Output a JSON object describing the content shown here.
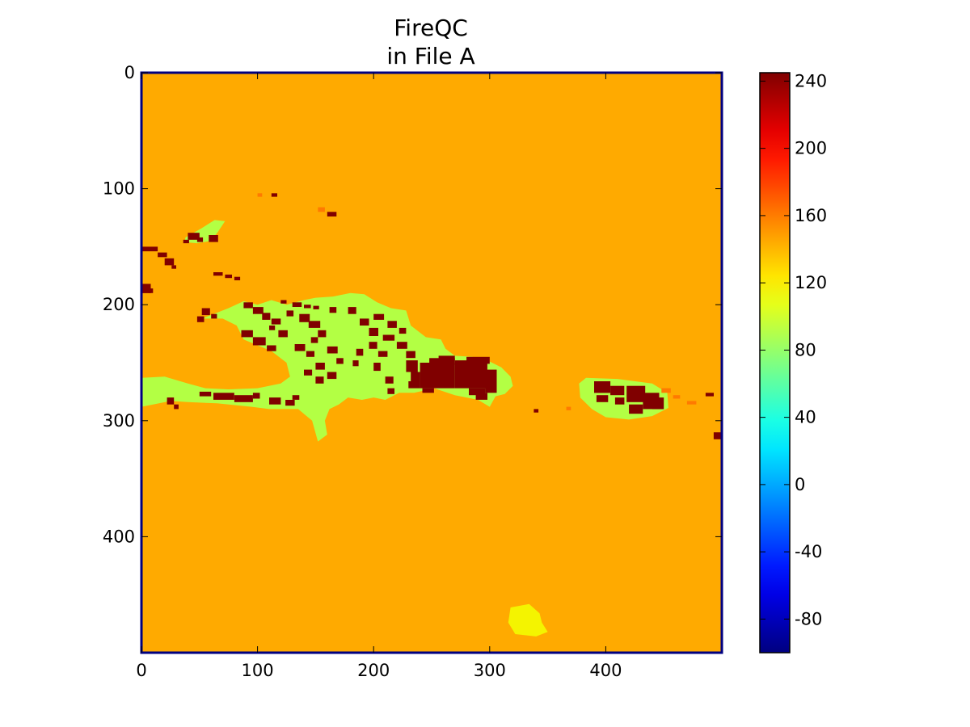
{
  "chart_data": {
    "type": "heatmap",
    "title": "FireQC",
    "subtitle": "in File A",
    "xlabel": "",
    "ylabel": "",
    "xlim": [
      0,
      500
    ],
    "ylim": [
      500,
      0
    ],
    "grid": false,
    "x_ticks": [
      "0",
      "100",
      "200",
      "300",
      "400"
    ],
    "y_ticks": [
      "0",
      "100",
      "200",
      "300",
      "400"
    ],
    "colormap": "jet",
    "colorbar": {
      "range": [
        -100,
        245
      ],
      "ticks": [
        "-80",
        "-40",
        "0",
        "40",
        "80",
        "120",
        "160",
        "200",
        "240"
      ],
      "tick_values": [
        -80,
        -40,
        0,
        40,
        80,
        120,
        160,
        200,
        240
      ]
    },
    "categories": [
      {
        "value": 165,
        "color": "#ffaa00"
      },
      {
        "value": 100,
        "color": "#b3ff44"
      },
      {
        "value": 245,
        "color": "#800000"
      },
      {
        "value": 135,
        "color": "#f4f400"
      },
      {
        "value": 175,
        "color": "#ff7a00"
      }
    ],
    "regions": [
      {
        "value": 100,
        "shape": "hispaniola",
        "points": [
          [
            75,
            203
          ],
          [
            88,
            197
          ],
          [
            100,
            200
          ],
          [
            112,
            196
          ],
          [
            125,
            200
          ],
          [
            140,
            196
          ],
          [
            150,
            194
          ],
          [
            165,
            193
          ],
          [
            180,
            190
          ],
          [
            192,
            191
          ],
          [
            203,
            198
          ],
          [
            215,
            203
          ],
          [
            228,
            205
          ],
          [
            232,
            218
          ],
          [
            245,
            228
          ],
          [
            258,
            230
          ],
          [
            262,
            238
          ],
          [
            270,
            244
          ],
          [
            285,
            245
          ],
          [
            298,
            248
          ],
          [
            310,
            254
          ],
          [
            318,
            262
          ],
          [
            320,
            270
          ],
          [
            313,
            277
          ],
          [
            305,
            279
          ],
          [
            300,
            288
          ],
          [
            290,
            282
          ],
          [
            270,
            278
          ],
          [
            252,
            272
          ],
          [
            235,
            276
          ],
          [
            222,
            276
          ],
          [
            210,
            282
          ],
          [
            200,
            280
          ],
          [
            190,
            282
          ],
          [
            178,
            280
          ],
          [
            170,
            286
          ],
          [
            162,
            290
          ],
          [
            158,
            300
          ],
          [
            160,
            312
          ],
          [
            152,
            318
          ],
          [
            147,
            300
          ],
          [
            135,
            290
          ],
          [
            110,
            290
          ],
          [
            95,
            288
          ],
          [
            65,
            285
          ],
          [
            40,
            284
          ],
          [
            25,
            283
          ],
          [
            10,
            286
          ],
          [
            0,
            288
          ],
          [
            0,
            263
          ],
          [
            20,
            262
          ],
          [
            40,
            268
          ],
          [
            55,
            272
          ],
          [
            75,
            273
          ],
          [
            100,
            272
          ],
          [
            120,
            268
          ],
          [
            128,
            262
          ],
          [
            125,
            250
          ],
          [
            112,
            240
          ],
          [
            88,
            230
          ],
          [
            82,
            218
          ],
          [
            70,
            212
          ],
          [
            52,
            212
          ]
        ]
      },
      {
        "value": 100,
        "shape": "puerto-rico",
        "points": [
          [
            377,
            268
          ],
          [
            383,
            263
          ],
          [
            410,
            264
          ],
          [
            440,
            268
          ],
          [
            453,
            276
          ],
          [
            454,
            289
          ],
          [
            440,
            296
          ],
          [
            420,
            299
          ],
          [
            400,
            297
          ],
          [
            388,
            290
          ],
          [
            378,
            280
          ]
        ]
      },
      {
        "value": 100,
        "shape": "cuba-blob",
        "points": [
          [
            38,
            142
          ],
          [
            52,
            134
          ],
          [
            63,
            127
          ],
          [
            72,
            128
          ],
          [
            66,
            137
          ],
          [
            60,
            145
          ],
          [
            48,
            147
          ],
          [
            37,
            146
          ]
        ]
      },
      {
        "value": 135,
        "shape": "island-south",
        "points": [
          [
            318,
            461
          ],
          [
            334,
            458
          ],
          [
            343,
            466
          ],
          [
            345,
            474
          ],
          [
            350,
            482
          ],
          [
            340,
            486
          ],
          [
            322,
            484
          ],
          [
            316,
            474
          ]
        ]
      }
    ],
    "blocks": [
      [
        52,
        203,
        7,
        6,
        245
      ],
      [
        48,
        210,
        6,
        5,
        245
      ],
      [
        60,
        208,
        5,
        4,
        245
      ],
      [
        88,
        198,
        8,
        5,
        245
      ],
      [
        96,
        202,
        9,
        6,
        245
      ],
      [
        104,
        207,
        7,
        6,
        245
      ],
      [
        112,
        212,
        8,
        5,
        245
      ],
      [
        110,
        218,
        5,
        4,
        245
      ],
      [
        86,
        222,
        10,
        6,
        245
      ],
      [
        96,
        228,
        11,
        7,
        245
      ],
      [
        108,
        235,
        8,
        5,
        245
      ],
      [
        118,
        222,
        8,
        6,
        245
      ],
      [
        125,
        205,
        6,
        5,
        245
      ],
      [
        136,
        208,
        9,
        7,
        245
      ],
      [
        144,
        214,
        10,
        6,
        245
      ],
      [
        152,
        222,
        7,
        6,
        245
      ],
      [
        146,
        228,
        6,
        5,
        245
      ],
      [
        132,
        234,
        9,
        6,
        245
      ],
      [
        142,
        240,
        7,
        5,
        245
      ],
      [
        150,
        250,
        8,
        6,
        245
      ],
      [
        160,
        236,
        9,
        6,
        245
      ],
      [
        168,
        246,
        6,
        5,
        245
      ],
      [
        160,
        258,
        8,
        6,
        245
      ],
      [
        150,
        262,
        7,
        6,
        245
      ],
      [
        140,
        256,
        7,
        5,
        245
      ],
      [
        162,
        202,
        6,
        5,
        245
      ],
      [
        178,
        202,
        7,
        6,
        245
      ],
      [
        188,
        212,
        8,
        6,
        245
      ],
      [
        196,
        220,
        8,
        7,
        245
      ],
      [
        200,
        208,
        9,
        5,
        245
      ],
      [
        212,
        214,
        8,
        6,
        245
      ],
      [
        222,
        220,
        6,
        5,
        245
      ],
      [
        196,
        232,
        7,
        6,
        245
      ],
      [
        204,
        240,
        8,
        5,
        245
      ],
      [
        200,
        250,
        6,
        7,
        245
      ],
      [
        210,
        262,
        7,
        6,
        245
      ],
      [
        208,
        226,
        10,
        5,
        245
      ],
      [
        220,
        232,
        9,
        6,
        245
      ],
      [
        228,
        240,
        8,
        6,
        245
      ],
      [
        185,
        238,
        6,
        6,
        245
      ],
      [
        182,
        248,
        5,
        5,
        245
      ],
      [
        212,
        272,
        6,
        5,
        245
      ],
      [
        228,
        248,
        10,
        10,
        245
      ],
      [
        232,
        258,
        8,
        8,
        245
      ],
      [
        240,
        250,
        30,
        22,
        245
      ],
      [
        248,
        246,
        22,
        6,
        245
      ],
      [
        256,
        244,
        14,
        4,
        245
      ],
      [
        270,
        248,
        28,
        24,
        245
      ],
      [
        280,
        245,
        20,
        6,
        245
      ],
      [
        282,
        272,
        14,
        6,
        245
      ],
      [
        288,
        276,
        10,
        6,
        245
      ],
      [
        296,
        256,
        10,
        20,
        245
      ],
      [
        242,
        272,
        10,
        4,
        245
      ],
      [
        230,
        266,
        10,
        6,
        245
      ],
      [
        62,
        276,
        18,
        6,
        245
      ],
      [
        80,
        278,
        16,
        6,
        245
      ],
      [
        96,
        276,
        6,
        5,
        245
      ],
      [
        50,
        275,
        10,
        4,
        245
      ],
      [
        110,
        280,
        10,
        6,
        245
      ],
      [
        124,
        282,
        8,
        5,
        245
      ],
      [
        130,
        278,
        6,
        4,
        245
      ],
      [
        22,
        280,
        6,
        6,
        245
      ],
      [
        28,
        286,
        4,
        4,
        245
      ],
      [
        0,
        182,
        8,
        8,
        245
      ],
      [
        6,
        186,
        4,
        4,
        245
      ],
      [
        0,
        150,
        14,
        4,
        245
      ],
      [
        14,
        155,
        8,
        4,
        245
      ],
      [
        20,
        160,
        8,
        6,
        245
      ],
      [
        26,
        166,
        4,
        3,
        245
      ],
      [
        62,
        172,
        8,
        3,
        245
      ],
      [
        72,
        174,
        6,
        3,
        245
      ],
      [
        80,
        176,
        5,
        3,
        245
      ],
      [
        120,
        196,
        5,
        3,
        245
      ],
      [
        130,
        198,
        8,
        4,
        245
      ],
      [
        140,
        200,
        6,
        3,
        245
      ],
      [
        148,
        201,
        5,
        3,
        245
      ],
      [
        40,
        138,
        10,
        6,
        245
      ],
      [
        48,
        142,
        5,
        4,
        245
      ],
      [
        58,
        140,
        8,
        6,
        245
      ],
      [
        36,
        144,
        5,
        3,
        245
      ],
      [
        390,
        266,
        14,
        10,
        245
      ],
      [
        404,
        270,
        12,
        8,
        245
      ],
      [
        392,
        278,
        10,
        6,
        245
      ],
      [
        408,
        280,
        8,
        6,
        245
      ],
      [
        418,
        270,
        16,
        14,
        245
      ],
      [
        432,
        276,
        14,
        14,
        245
      ],
      [
        440,
        280,
        10,
        10,
        245
      ],
      [
        420,
        286,
        12,
        8,
        245
      ],
      [
        448,
        272,
        8,
        4,
        175
      ],
      [
        458,
        278,
        6,
        3,
        175
      ],
      [
        470,
        283,
        8,
        3,
        175
      ],
      [
        486,
        276,
        7,
        3,
        245
      ],
      [
        493,
        310,
        6,
        6,
        245
      ],
      [
        338,
        290,
        4,
        3,
        245
      ],
      [
        366,
        288,
        4,
        3,
        175
      ],
      [
        152,
        116,
        6,
        4,
        175
      ],
      [
        160,
        120,
        8,
        4,
        245
      ],
      [
        100,
        104,
        4,
        3,
        175
      ],
      [
        112,
        104,
        5,
        3,
        245
      ]
    ]
  }
}
